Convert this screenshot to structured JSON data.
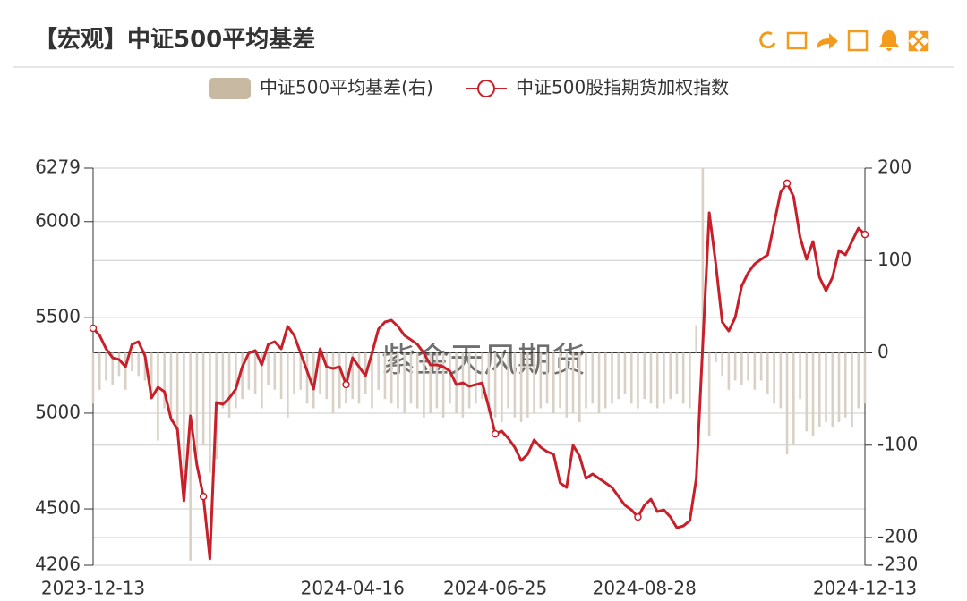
{
  "chart_data": {
    "type": "combo",
    "title": "【宏观】中证500平均基差",
    "watermark": "紫金天风期货",
    "categories": [
      "2023-12-13",
      null,
      null,
      null,
      null,
      null,
      null,
      null,
      null,
      null,
      null,
      null,
      null,
      null,
      null,
      null,
      null,
      null,
      null,
      null,
      null,
      null,
      null,
      null,
      null,
      null,
      null,
      null,
      null,
      null,
      null,
      null,
      null,
      null,
      null,
      null,
      null,
      null,
      null,
      null,
      "2024-04-16",
      null,
      null,
      null,
      null,
      null,
      null,
      null,
      null,
      null,
      null,
      null,
      null,
      null,
      null,
      null,
      null,
      null,
      null,
      null,
      null,
      null,
      "2024-06-25",
      null,
      null,
      null,
      null,
      null,
      null,
      null,
      null,
      null,
      null,
      null,
      null,
      null,
      null,
      null,
      null,
      null,
      null,
      null,
      null,
      null,
      null,
      "2024-08-28",
      null,
      null,
      null,
      null,
      null,
      null,
      null,
      null,
      null,
      null,
      null,
      null,
      null,
      null,
      null,
      null,
      null,
      null,
      null,
      null,
      null,
      null,
      null,
      null,
      null,
      null,
      null,
      null,
      null,
      null,
      null,
      null,
      null,
      "2024-12-13"
    ],
    "series": [
      {
        "name": "中证500平均基差(右)",
        "type": "bar",
        "axis": "y2",
        "color": "#d9d1c5",
        "legend_color": "#c8b9a2",
        "values": [
          -55,
          -40,
          -30,
          -35,
          -25,
          -40,
          -20,
          -25,
          -30,
          -45,
          -95,
          -60,
          -75,
          -90,
          -130,
          -225,
          -110,
          -100,
          -130,
          -115,
          -60,
          -70,
          -60,
          -50,
          -40,
          -45,
          -60,
          -35,
          -40,
          -50,
          -70,
          -45,
          -40,
          -55,
          -60,
          -45,
          -50,
          -65,
          -60,
          -55,
          -50,
          -55,
          -45,
          -60,
          -40,
          -50,
          -55,
          -60,
          -65,
          -55,
          -60,
          -70,
          -65,
          -60,
          -70,
          -55,
          -65,
          -70,
          -60,
          -55,
          -50,
          -65,
          -70,
          -75,
          -60,
          -70,
          -75,
          -70,
          -65,
          -60,
          -55,
          -65,
          -60,
          -70,
          -65,
          -75,
          -60,
          -55,
          -65,
          -60,
          -55,
          -50,
          -45,
          -55,
          -60,
          -50,
          -55,
          -60,
          -55,
          -50,
          -45,
          -55,
          -60,
          30,
          200,
          -90,
          -10,
          -25,
          -40,
          -30,
          -35,
          -30,
          -40,
          -30,
          -45,
          -55,
          -60,
          -110,
          -100,
          -50,
          -85,
          -90,
          -80,
          -75,
          -80,
          -75,
          -70,
          -80,
          -60,
          -55
        ]
      },
      {
        "name": "中证500股指期货加权指数",
        "type": "line",
        "color": "#c8202a",
        "values": [
          5443,
          5406,
          5336,
          5289,
          5280,
          5242,
          5359,
          5373,
          5299,
          5079,
          5135,
          5112,
          4972,
          4916,
          4542,
          4986,
          4729,
          4565,
          4239,
          5056,
          5046,
          5079,
          5126,
          5242,
          5313,
          5327,
          5252,
          5359,
          5373,
          5336,
          5453,
          5406,
          5313,
          5219,
          5126,
          5336,
          5242,
          5233,
          5242,
          5149,
          5289,
          5242,
          5196,
          5313,
          5439,
          5476,
          5485,
          5453,
          5406,
          5383,
          5359,
          5313,
          5252,
          5252,
          5242,
          5219,
          5149,
          5158,
          5140,
          5149,
          5158,
          5032,
          4892,
          4906,
          4869,
          4822,
          4752,
          4785,
          4860,
          4822,
          4799,
          4785,
          4636,
          4612,
          4832,
          4776,
          4659,
          4682,
          4659,
          4636,
          4612,
          4565,
          4519,
          4495,
          4458,
          4519,
          4551,
          4486,
          4495,
          4458,
          4402,
          4411,
          4439,
          4659,
          5359,
          6046,
          5779,
          5476,
          5429,
          5499,
          5663,
          5733,
          5779,
          5803,
          5826,
          5990,
          6153,
          6200,
          6130,
          5919,
          5803,
          5896,
          5709,
          5639,
          5709,
          5849,
          5826,
          5896,
          5966,
          5933
        ]
      }
    ],
    "ylim": [
      4206,
      6279
    ],
    "yticks": [
      4206,
      4500,
      5000,
      5500,
      6000,
      6279
    ],
    "y2lim": [
      -230,
      200
    ],
    "y2ticks": [
      -230,
      -200,
      -100,
      0,
      100,
      200
    ],
    "grid": true
  }
}
